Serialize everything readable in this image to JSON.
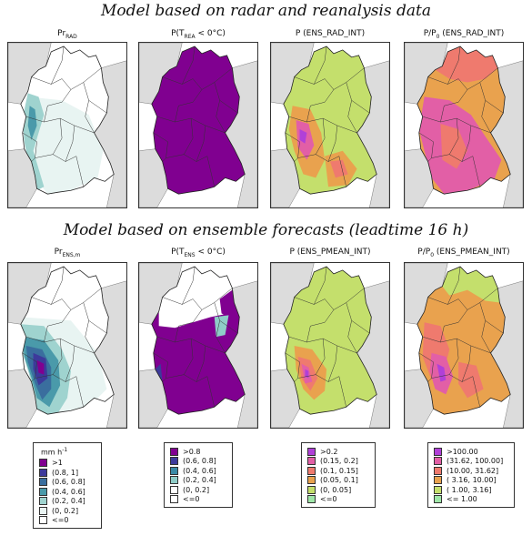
{
  "row_titles": [
    "Model based on radar and reanalysis data",
    "Model based on ensemble forecasts (leadtime 16 h)"
  ],
  "panels": [
    {
      "title": "Pr",
      "sub": "RAD",
      "tail": ""
    },
    {
      "title": "P(T",
      "sub": "REA",
      "tail": " < 0°C)"
    },
    {
      "title": "P (ENS_RAD_INT)",
      "sub": "",
      "tail": ""
    },
    {
      "title": "P/P",
      "sub": "0",
      "tail": " (ENS_RAD_INT)"
    },
    {
      "title": "Pr",
      "sub": "ENS,m",
      "tail": ""
    },
    {
      "title": "P(T",
      "sub": "ENS",
      "tail": " < 0°C)"
    },
    {
      "title": "P (ENS_PMEAN_INT)",
      "sub": "",
      "tail": ""
    },
    {
      "title": "P/P",
      "sub": "0",
      "tail": " (ENS_PMEAN_INT)"
    }
  ],
  "legends": [
    {
      "title": "mm h",
      "title_sup": "-1",
      "items": [
        {
          "label": ">1",
          "color": "#800090"
        },
        {
          "label": "(0.8, 1]",
          "color": "#3d3a9b"
        },
        {
          "label": "(0.6, 0.8]",
          "color": "#3a6e9e"
        },
        {
          "label": "(0.4, 0.6]",
          "color": "#4a9aaa"
        },
        {
          "label": "(0.2, 0.4]",
          "color": "#9fd3cf"
        },
        {
          "label": "(0, 0.2]",
          "color": "#eaf5f3"
        },
        {
          "label": "<=0",
          "color": "#ffffff"
        }
      ]
    },
    {
      "title": "",
      "title_sup": "",
      "items": [
        {
          "label": ">0.8",
          "color": "#800090"
        },
        {
          "label": "(0.6, 0.8]",
          "color": "#3d3a9b"
        },
        {
          "label": "(0.4, 0.6]",
          "color": "#3a8aa6"
        },
        {
          "label": "(0.2, 0.4]",
          "color": "#8fcdc8"
        },
        {
          "label": "(0, 0.2]",
          "color": "#ffffff"
        },
        {
          "label": "<=0",
          "color": "#ffffff"
        }
      ]
    },
    {
      "title": "",
      "title_sup": "",
      "items": [
        {
          "label": ">0.2",
          "color": "#b040d8"
        },
        {
          "label": "(0.15, 0.2]",
          "color": "#e25fa6"
        },
        {
          "label": "(0.1, 0.15]",
          "color": "#ef7a6e"
        },
        {
          "label": "(0.05, 0.1]",
          "color": "#e9a24e"
        },
        {
          "label": "(0, 0.05]",
          "color": "#c4df6c"
        },
        {
          "label": "<=0",
          "color": "#9fe6a8"
        }
      ]
    },
    {
      "title": "",
      "title_sup": "",
      "items": [
        {
          "label": ">100.00",
          "color": "#b040d8"
        },
        {
          "label": "(31.62, 100.00]",
          "color": "#e25fa6"
        },
        {
          "label": "(10.00, 31.62]",
          "color": "#ef7a6e"
        },
        {
          "label": "( 3.16, 10.00]",
          "color": "#e9a24e"
        },
        {
          "label": "( 1.00, 3.16]",
          "color": "#c4df6c"
        },
        {
          "label": "<= 1.00",
          "color": "#9fe6a8"
        }
      ]
    }
  ],
  "colors": {
    "background_land": "#dcdcdc",
    "border": "#333333"
  }
}
